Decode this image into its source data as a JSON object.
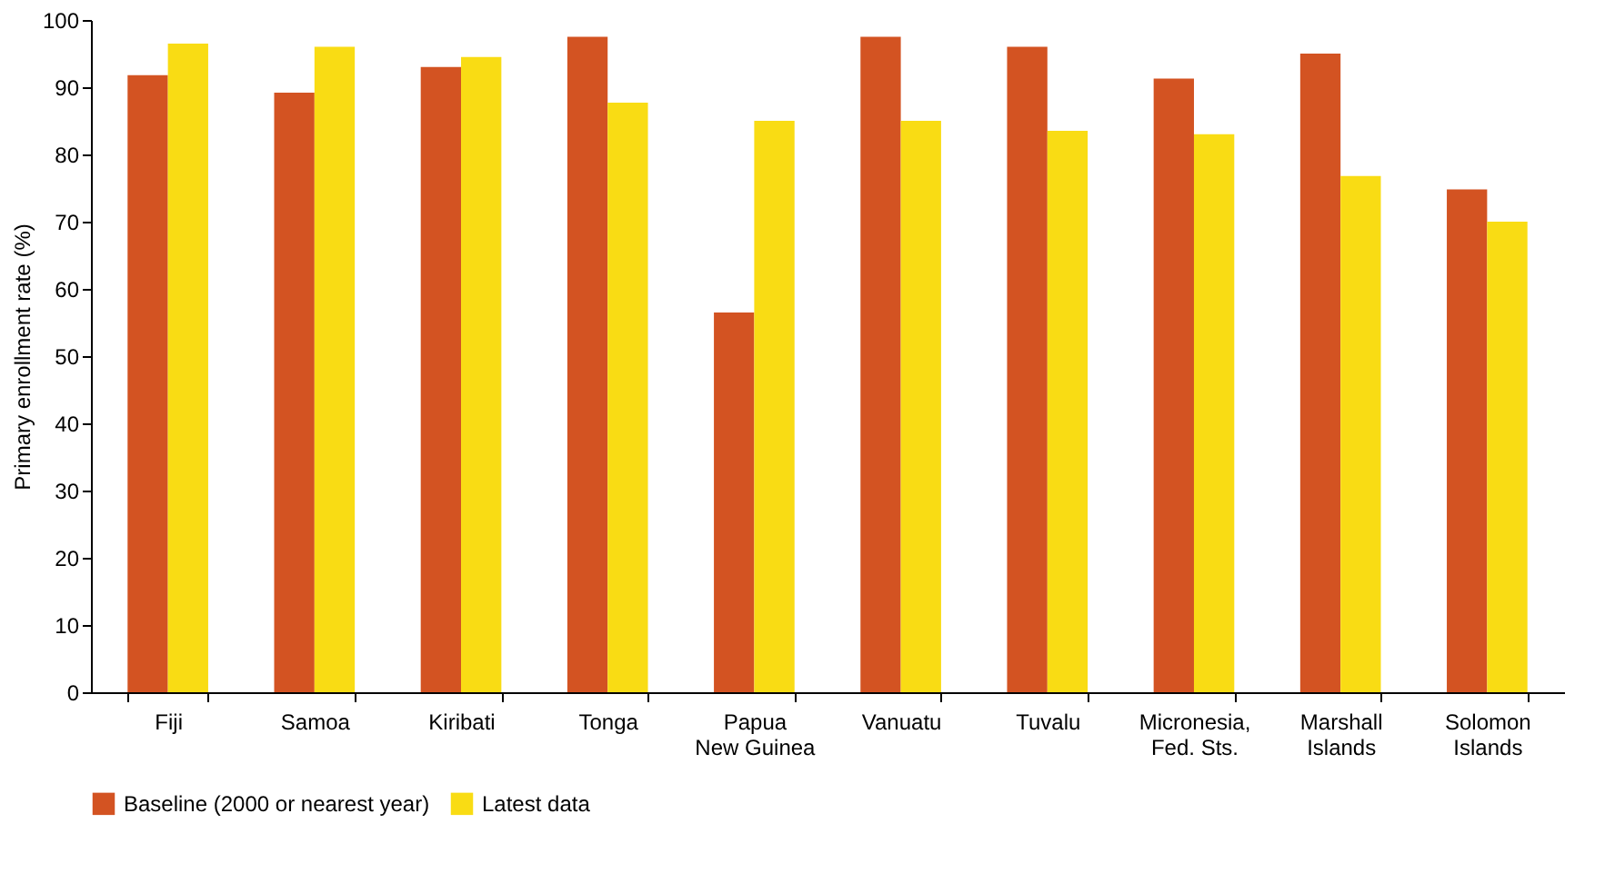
{
  "chart_data": {
    "type": "bar",
    "ylabel": "Primary enrollment rate (%)",
    "categories": [
      "Fiji",
      "Samoa",
      "Kiribati",
      "Tonga",
      "Papua\nNew Guinea",
      "Vanuatu",
      "Tuvalu",
      "Micronesia,\nFed. Sts.",
      "Marshall\nIslands",
      "Solomon\nIslands"
    ],
    "series": [
      {
        "name": "Baseline (2000 or nearest year)",
        "color": "#d35322",
        "values": [
          91.8,
          89.2,
          93,
          97.5,
          56.5,
          97.5,
          96,
          91.3,
          95,
          74.8
        ]
      },
      {
        "name": "Latest data",
        "color": "#f9dc14",
        "values": [
          96.5,
          96,
          94.5,
          87.7,
          85,
          85,
          83.5,
          83,
          76.8,
          70
        ]
      }
    ],
    "ylim": [
      0,
      100
    ],
    "yticks": [
      0,
      10,
      20,
      30,
      40,
      50,
      60,
      70,
      80,
      90,
      100
    ],
    "grid": false,
    "legend": "bottom"
  }
}
